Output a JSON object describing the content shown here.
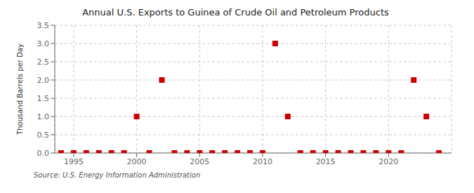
{
  "chart_data": {
    "type": "scatter",
    "title": "Annual U.S. Exports to Guinea of Crude Oil and Petroleum Products",
    "ylabel": "Thousand Barrels per Day",
    "annotation": "Source: U.S. Energy Information Administration",
    "x": [
      1994,
      1995,
      1996,
      1997,
      1998,
      1999,
      2000,
      2001,
      2002,
      2003,
      2004,
      2005,
      2006,
      2007,
      2008,
      2009,
      2010,
      2011,
      2012,
      2013,
      2014,
      2015,
      2016,
      2017,
      2018,
      2019,
      2020,
      2021,
      2022,
      2023,
      2024
    ],
    "values": [
      0,
      0,
      0,
      0,
      0,
      0,
      1,
      0,
      2,
      0,
      0,
      0,
      0,
      0,
      0,
      0,
      0,
      3,
      1,
      0,
      0,
      0,
      0,
      0,
      0,
      0,
      0,
      0,
      2,
      1,
      0
    ],
    "color": "#cc0000",
    "marker": "square",
    "xlim": [
      1993.5,
      2025.0
    ],
    "ylim": [
      0.0,
      3.5
    ],
    "xticks": [
      1995,
      2000,
      2005,
      2010,
      2015,
      2020
    ],
    "yticks": [
      {
        "value": 0.0,
        "label": "0.0"
      },
      0.5,
      {
        "value": 1.0,
        "label": "1.0"
      },
      1.5,
      {
        "value": 2.0,
        "label": "2.0"
      },
      2.5,
      {
        "value": 3.0,
        "label": "3.0"
      },
      3.5
    ],
    "grid": true
  }
}
